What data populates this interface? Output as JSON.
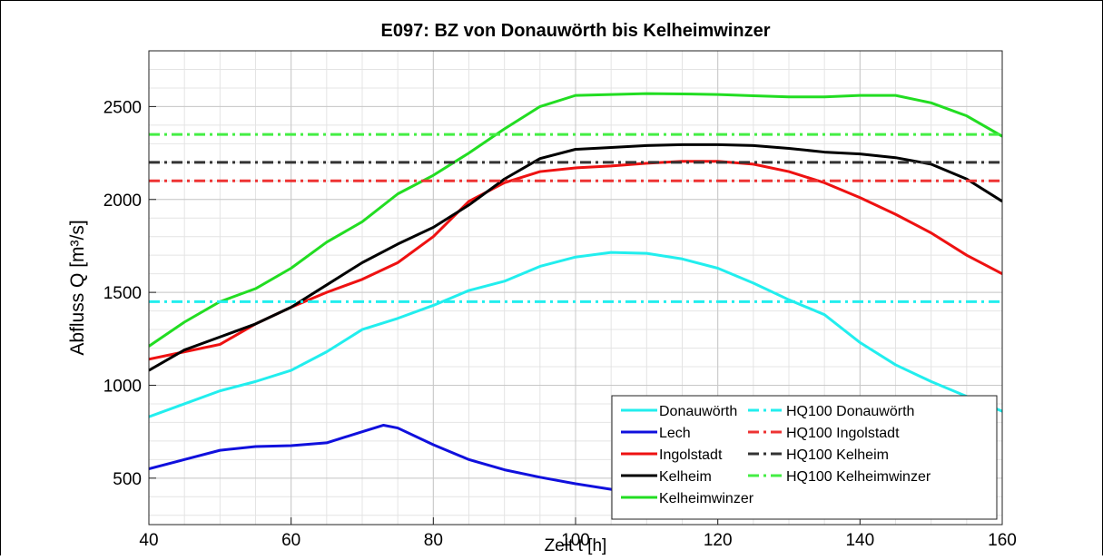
{
  "chart_data": {
    "type": "line",
    "title": "E097: BZ von Donauwörth bis Kelheimwinzer",
    "x_label": "Zeit t [h]",
    "y_label": "Abfluss Q [m³/s]",
    "xlim": [
      40,
      160
    ],
    "ylim": [
      250,
      2800
    ],
    "xticks": [
      40,
      60,
      80,
      100,
      120,
      140,
      160
    ],
    "yticks": [
      500,
      1000,
      1500,
      2000,
      2500
    ],
    "grid": true,
    "minor_grid": true,
    "legend": "lower right",
    "series": [
      {
        "name": "Donauwörth",
        "color": "#22eeee",
        "style": "solid",
        "x": [
          40,
          45,
          50,
          55,
          60,
          65,
          70,
          75,
          80,
          85,
          90,
          95,
          100,
          105,
          110,
          115,
          120,
          125,
          130,
          135,
          140,
          145,
          150,
          155,
          160
        ],
        "values": [
          830,
          900,
          970,
          1020,
          1080,
          1180,
          1300,
          1360,
          1430,
          1510,
          1560,
          1640,
          1690,
          1715,
          1710,
          1680,
          1630,
          1550,
          1460,
          1380,
          1230,
          1110,
          1020,
          940,
          860
        ]
      },
      {
        "name": "Lech",
        "color": "#1010dd",
        "style": "solid",
        "x": [
          40,
          45,
          50,
          55,
          60,
          65,
          70,
          73,
          75,
          80,
          85,
          90,
          95,
          100,
          105,
          110,
          112
        ],
        "values": [
          550,
          600,
          650,
          670,
          675,
          690,
          750,
          785,
          770,
          680,
          600,
          545,
          505,
          470,
          440,
          415,
          405
        ]
      },
      {
        "name": "Ingolstadt",
        "color": "#ee1111",
        "style": "solid",
        "x": [
          40,
          45,
          50,
          55,
          60,
          65,
          70,
          75,
          80,
          85,
          90,
          95,
          100,
          105,
          110,
          115,
          120,
          125,
          130,
          135,
          140,
          145,
          150,
          155,
          160
        ],
        "values": [
          1140,
          1180,
          1220,
          1330,
          1420,
          1500,
          1570,
          1660,
          1800,
          1990,
          2090,
          2150,
          2170,
          2180,
          2195,
          2205,
          2205,
          2190,
          2150,
          2090,
          2010,
          1920,
          1820,
          1700,
          1600
        ]
      },
      {
        "name": "Kelheim",
        "color": "#000000",
        "style": "solid",
        "x": [
          40,
          45,
          50,
          55,
          60,
          65,
          70,
          75,
          80,
          85,
          90,
          95,
          100,
          105,
          110,
          115,
          120,
          125,
          130,
          135,
          140,
          145,
          150,
          155,
          160
        ],
        "values": [
          1080,
          1190,
          1260,
          1330,
          1420,
          1540,
          1660,
          1760,
          1850,
          1970,
          2110,
          2220,
          2270,
          2280,
          2290,
          2295,
          2295,
          2290,
          2275,
          2255,
          2245,
          2225,
          2190,
          2110,
          1990
        ]
      },
      {
        "name": "Kelheimwinzer",
        "color": "#22dd22",
        "style": "solid",
        "x": [
          40,
          45,
          50,
          55,
          60,
          65,
          70,
          75,
          80,
          85,
          90,
          95,
          100,
          105,
          110,
          115,
          120,
          125,
          130,
          135,
          140,
          145,
          150,
          155,
          160
        ],
        "values": [
          1210,
          1340,
          1450,
          1520,
          1630,
          1770,
          1880,
          2030,
          2130,
          2250,
          2380,
          2500,
          2560,
          2565,
          2570,
          2568,
          2565,
          2558,
          2552,
          2552,
          2560,
          2560,
          2520,
          2450,
          2340
        ]
      },
      {
        "name": "HQ100 Donauwörth",
        "color": "#22eeee",
        "style": "dashdot",
        "x": [
          40,
          160
        ],
        "values": [
          1450,
          1450
        ]
      },
      {
        "name": "HQ100 Ingolstadt",
        "color": "#ee3333",
        "style": "dashdot",
        "x": [
          40,
          160
        ],
        "values": [
          2100,
          2100
        ]
      },
      {
        "name": "HQ100 Kelheim",
        "color": "#333333",
        "style": "dashdot",
        "x": [
          40,
          160
        ],
        "values": [
          2200,
          2200
        ]
      },
      {
        "name": "HQ100 Kelheimwinzer",
        "color": "#44ee44",
        "style": "dashdot",
        "x": [
          40,
          160
        ],
        "values": [
          2350,
          2350
        ]
      }
    ]
  }
}
